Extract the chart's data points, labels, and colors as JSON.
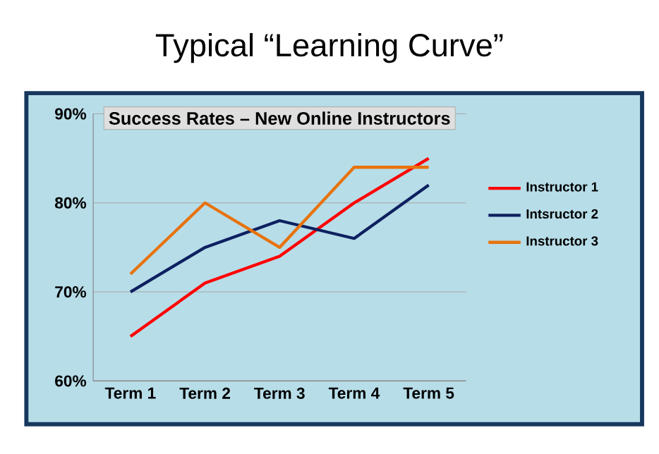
{
  "chart_data": {
    "type": "line",
    "title": "Typical “Learning Curve”",
    "subtitle": "Success Rates – New Online Instructors",
    "categories": [
      "Term 1",
      "Term 2",
      "Term 3",
      "Term 4",
      "Term 5"
    ],
    "series": [
      {
        "name": "Instructor 1",
        "color": "#ff0000",
        "values": [
          65,
          71,
          74,
          80,
          85
        ]
      },
      {
        "name": "Intsructor 2",
        "color": "#0d2060",
        "values": [
          70,
          75,
          78,
          76,
          82
        ]
      },
      {
        "name": "Instructor 3",
        "color": "#e8720c",
        "values": [
          72,
          80,
          75,
          84,
          84
        ]
      }
    ],
    "ylim": [
      60,
      90
    ],
    "yticks": [
      {
        "value": 60,
        "label": "60%"
      },
      {
        "value": 70,
        "label": "70%"
      },
      {
        "value": 80,
        "label": "80%"
      },
      {
        "value": 90,
        "label": "90%"
      }
    ],
    "grid": "y",
    "legend": "right",
    "marker": "none",
    "line_style": "solid"
  }
}
